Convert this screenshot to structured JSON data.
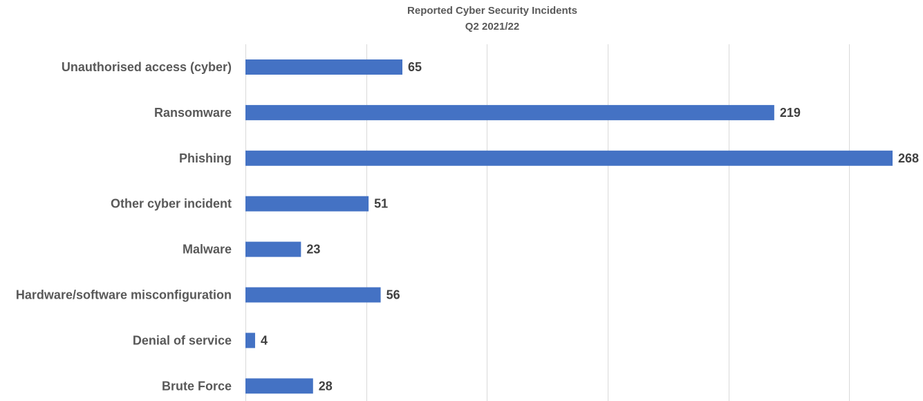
{
  "chart_data": {
    "type": "bar",
    "orientation": "horizontal",
    "title": "Reported Cyber Security Incidents",
    "subtitle": "Q2 2021/22",
    "categories": [
      "Unauthorised access (cyber)",
      "Ransomware",
      "Phishing",
      "Other cyber incident",
      "Malware",
      "Hardware/software misconfiguration",
      "Denial of service",
      "Brute Force"
    ],
    "values": [
      65,
      219,
      268,
      51,
      23,
      56,
      4,
      28
    ],
    "xlim": [
      0,
      280
    ],
    "x_gridline_step": 50,
    "grid": true,
    "show_x_tick_labels": false,
    "data_labels": true,
    "legend": "none",
    "xlabel": "",
    "ylabel": "",
    "bar_color": "#4472C4",
    "text_color": "#595959",
    "label_color": "#404040",
    "grid_color": "#D9D9D9"
  }
}
